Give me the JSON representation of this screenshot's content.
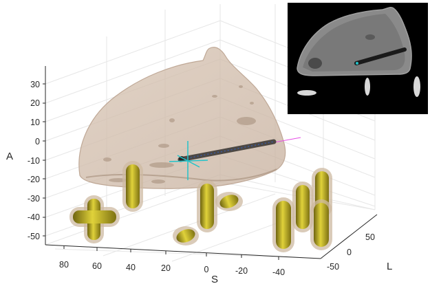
{
  "figure": {
    "axes": {
      "a_label": "A",
      "s_label": "S",
      "l_label": "L",
      "a_ticks": [
        "30",
        "20",
        "10",
        "0",
        "-10",
        "-20",
        "-30",
        "-40",
        "-50"
      ],
      "s_ticks": [
        "80",
        "60",
        "40",
        "20",
        "0",
        "-20",
        "-40"
      ],
      "l_ticks": [
        "50",
        "0",
        "-50"
      ]
    },
    "colors": {
      "organ": "#d9c6b6",
      "organ_edge": "#bfa896",
      "marker": "#c9b81e",
      "marker_halo": "#cdb9a2",
      "needle": "#5a5550",
      "crosshair": "#22c3c9",
      "trajectory": "#e64ce6",
      "grid": "#e6e6e6",
      "inset_bg": "#000000"
    },
    "inset_label": "ct-slice-inset"
  }
}
